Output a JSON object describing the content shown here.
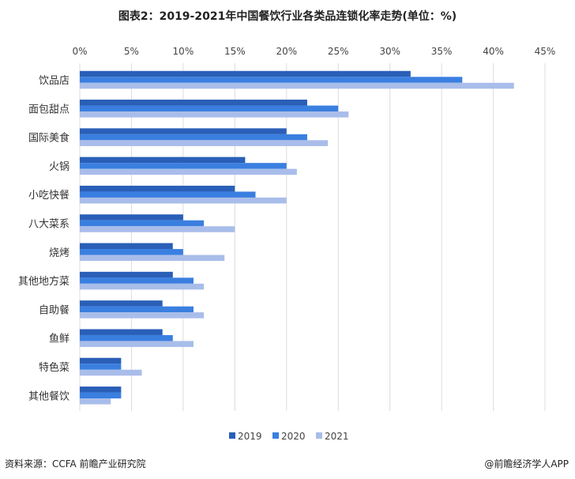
{
  "chart_data": {
    "type": "bar",
    "orientation": "horizontal",
    "title": "图表2：2019-2021年中国餐饮行业各类品连锁化率走势(单位：%)",
    "categories": [
      "饮品店",
      "面包甜点",
      "国际美食",
      "火锅",
      "小吃快餐",
      "八大菜系",
      "烧烤",
      "其他地方菜",
      "自助餐",
      "鱼鲜",
      "特色菜",
      "其他餐饮"
    ],
    "series": [
      {
        "name": "2019",
        "color": "#2a5fb8",
        "values": [
          32,
          22,
          20,
          16,
          15,
          10,
          9,
          9,
          8,
          8,
          4,
          4
        ]
      },
      {
        "name": "2020",
        "color": "#3a7fe0",
        "values": [
          37,
          25,
          22,
          20,
          17,
          12,
          10,
          11,
          11,
          9,
          4,
          4
        ]
      },
      {
        "name": "2021",
        "color": "#a9bdea",
        "values": [
          42,
          26,
          24,
          21,
          20,
          15,
          14,
          12,
          12,
          11,
          6,
          3
        ]
      }
    ],
    "xlim": [
      0,
      45
    ],
    "xticks": [
      "0%",
      "5%",
      "10%",
      "15%",
      "20%",
      "25%",
      "30%",
      "35%",
      "40%",
      "45%"
    ],
    "grid": true,
    "legend": "bottom"
  },
  "footer": {
    "source": "资料来源：CCFA 前瞻产业研究院",
    "brand": "@前瞻经济学人APP"
  }
}
